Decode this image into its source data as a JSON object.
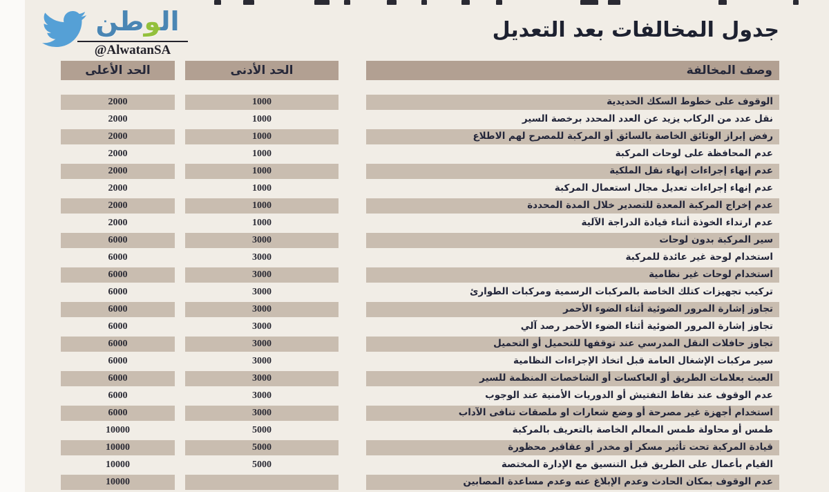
{
  "page": {
    "title": "جدول المخالفات بعد التعديل",
    "background_color": "#f1ede6"
  },
  "logo": {
    "brand_part_right": "ال",
    "brand_part_waw": "و",
    "brand_part_left": "طن",
    "handle": "@AlwatanSA",
    "colors": {
      "bird_blue": "#55a0d6",
      "brand_blue": "#4a86b4",
      "waw_green": "#93c03c",
      "handle_dark": "#23222b"
    }
  },
  "table": {
    "headers": {
      "description": "وصف المخالفة",
      "min": "الحد الأدنى",
      "max": "الحد الأعلى"
    },
    "colors": {
      "header_bg": "#b2a092",
      "shaded_row_bg": "#c9bdb0",
      "text_dark": "#23263a"
    },
    "rows": [
      {
        "description": "الوقوف على خطوط السكك الحديدية",
        "min": "1000",
        "max": "2000"
      },
      {
        "description": "نقل عدد من الركاب يزيد عن العدد المحدد برخصة السير",
        "min": "1000",
        "max": "2000"
      },
      {
        "description": "رفض إبراز الوثائق الخاصة بالسائق أو المركبة للمصرح لهم الاطلاع",
        "min": "1000",
        "max": "2000"
      },
      {
        "description": "عدم المحافظة على لوحات المركبة",
        "min": "1000",
        "max": "2000"
      },
      {
        "description": "عدم إنهاء إجراءات إنهاء نقل الملكية",
        "min": "1000",
        "max": "2000"
      },
      {
        "description": "عدم إنهاء إجراءات تعديل مجال استعمال المركبة",
        "min": "1000",
        "max": "2000"
      },
      {
        "description": "عدم إخراج المركبة المعدة للتصدير خلال المدة المحددة",
        "min": "1000",
        "max": "2000"
      },
      {
        "description": "عدم ارتداء الخوذة أثناء قيادة الدراجة الآلية",
        "min": "1000",
        "max": "2000"
      },
      {
        "description": "سير المركبة بدون لوحات",
        "min": "3000",
        "max": "6000"
      },
      {
        "description": "استخدام لوحة غير عائدة للمركبة",
        "min": "3000",
        "max": "6000"
      },
      {
        "description": "استخدام لوحات غير نظامية",
        "min": "3000",
        "max": "6000"
      },
      {
        "description": "تركيب تجهيزات كتلك الخاصة بالمركبات الرسمية ومركبات الطوارئ",
        "min": "3000",
        "max": "6000"
      },
      {
        "description": "تجاوز إشارة المرور الضوئية أثناء الضوء الأحمر",
        "min": "3000",
        "max": "6000"
      },
      {
        "description": "تجاوز إشارة المرور الضوئية أثناء الضوء الأحمر رصد آلي",
        "min": "3000",
        "max": "6000"
      },
      {
        "description": "تجاوز حافلات النقل المدرسي عند توقفها للتحميل أو التحميل",
        "min": "3000",
        "max": "6000"
      },
      {
        "description": "سير مركبات الإشغال العامة قبل اتخاذ الإجراءات النظامية",
        "min": "3000",
        "max": "6000"
      },
      {
        "description": "العبث بعلامات الطريق أو العاكسات أو الشاخصات المنظمة للسير",
        "min": "3000",
        "max": "6000"
      },
      {
        "description": "عدم الوقوف عند نقاط التفتيش أو الدوريات الأمنية عند الوجوب",
        "min": "3000",
        "max": "6000"
      },
      {
        "description": "استخدام أجهزة غير مصرحة أو وضع شعارات او ملصقات تنافى الآداب",
        "min": "3000",
        "max": "6000"
      },
      {
        "description": "طمس أو محاولة طمس المعالم الخاصة بالتعريف بالمركبة",
        "min": "5000",
        "max": "10000"
      },
      {
        "description": "قيادة المركبة تحت تأثير مسكر أو مخدر أو عقاقير محظورة",
        "min": "5000",
        "max": "10000"
      },
      {
        "description": "القيام بأعمال على الطريق قبل التنسيق مع الإدارة المختصة",
        "min": "5000",
        "max": "10000"
      },
      {
        "description": "عدم الوقوف بمكان الحادث وعدم الإبلاغ عنه وعدم مساعدة المصابين",
        "min": "",
        "max": "10000"
      }
    ]
  }
}
